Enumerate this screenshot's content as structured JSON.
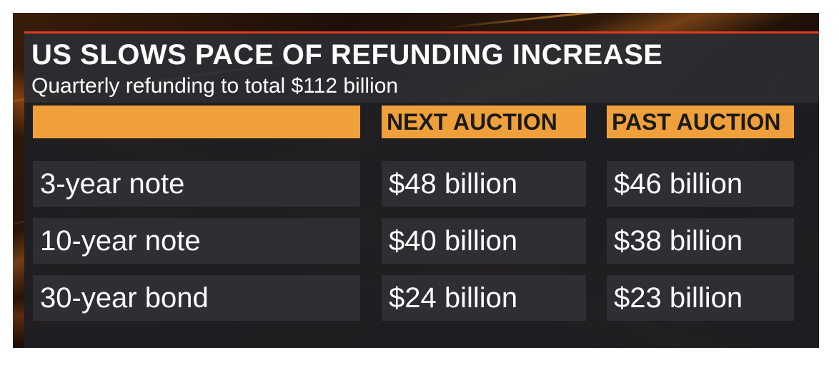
{
  "title": "US SLOWS PACE OF REFUNDING INCREASE",
  "subtitle": "Quarterly refunding to total $112 billion",
  "table": {
    "headers": [
      "",
      "NEXT AUCTION",
      "PAST AUCTION"
    ],
    "rows": [
      [
        "3-year note",
        "$48 billion",
        "$46 billion"
      ],
      [
        "10-year note",
        "$40 billion",
        "$38 billion"
      ],
      [
        "30-year bond",
        "$24 billion",
        "$23 billion"
      ]
    ]
  },
  "colors": {
    "header_accent": "#f0a03a",
    "title_rule": "#e03a1e",
    "panel": "#2c2c32",
    "cell": "#2e2e33"
  }
}
